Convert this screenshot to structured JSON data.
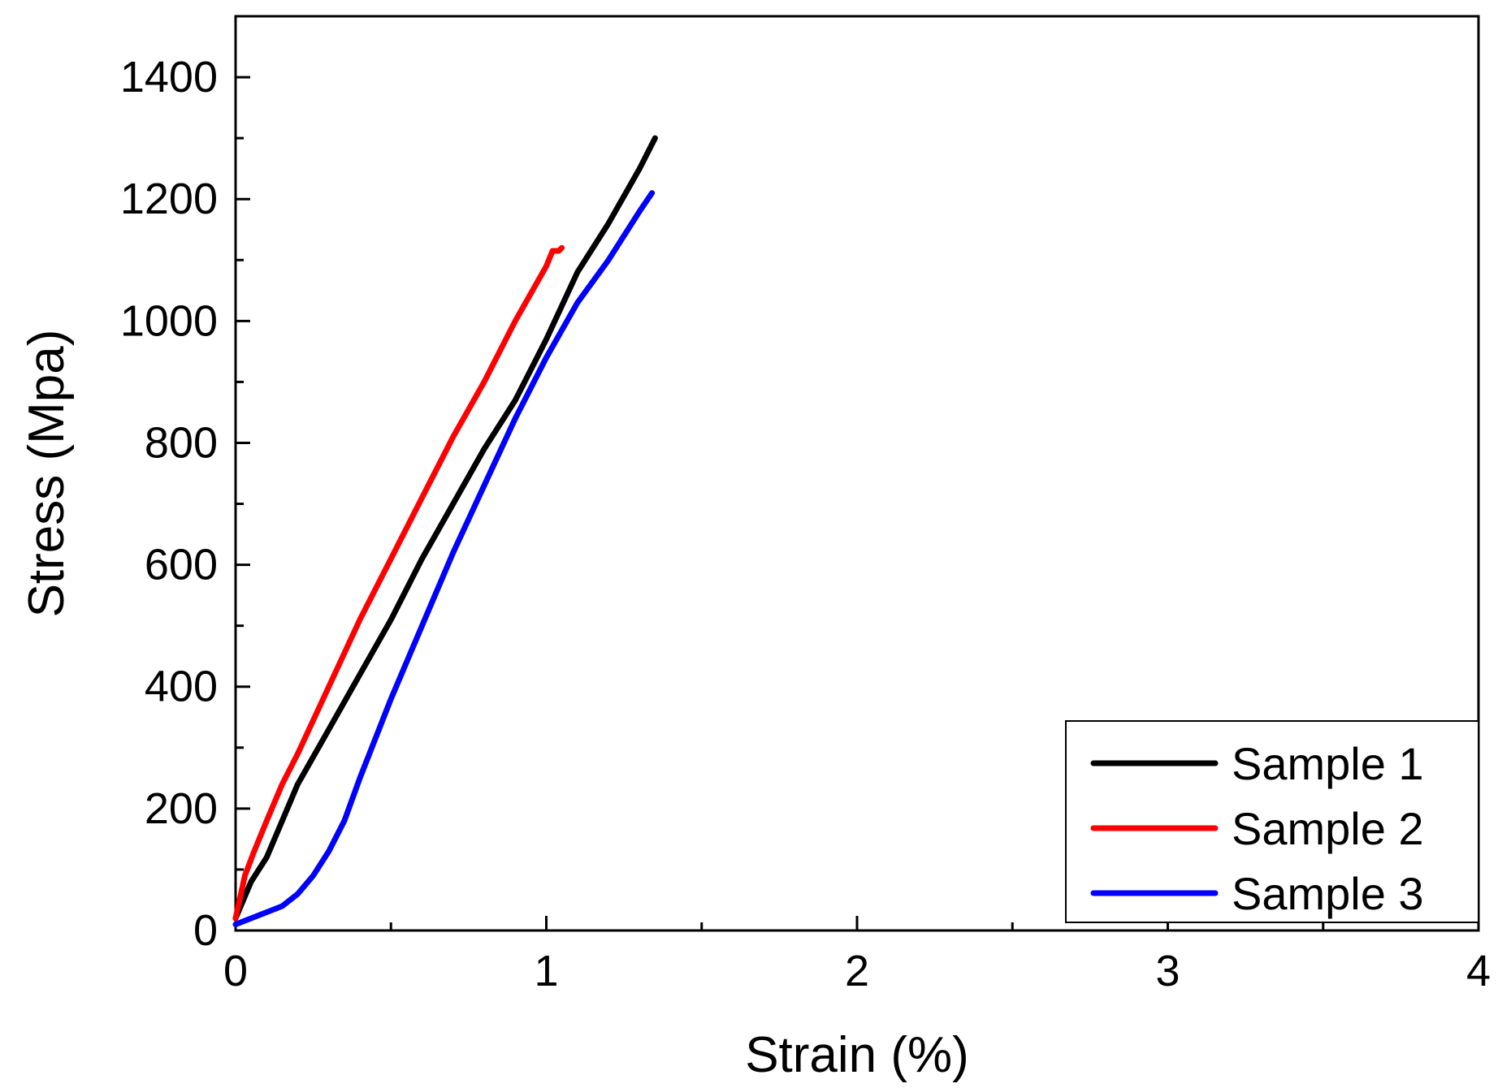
{
  "chart_data": {
    "type": "line",
    "title": "",
    "xlabel": "Strain (%)",
    "ylabel": "Stress (Mpa)",
    "xlim": [
      0,
      4
    ],
    "ylim": [
      0,
      1500
    ],
    "x_ticks": [
      0,
      1,
      2,
      3,
      4
    ],
    "x_tick_labels": [
      "0",
      "1",
      "2",
      "3",
      "4"
    ],
    "y_ticks": [
      0,
      200,
      400,
      600,
      800,
      1000,
      1200,
      1400
    ],
    "y_tick_labels": [
      "0",
      "200",
      "400",
      "600",
      "800",
      "1000",
      "1200",
      "1400"
    ],
    "grid": false,
    "legend_position": "bottom-right",
    "series": [
      {
        "name": "Sample 1",
        "color": "#000000",
        "x": [
          0.0,
          0.05,
          0.1,
          0.15,
          0.2,
          0.3,
          0.4,
          0.5,
          0.6,
          0.7,
          0.8,
          0.9,
          1.0,
          1.1,
          1.2,
          1.3,
          1.35
        ],
        "y": [
          20,
          80,
          120,
          180,
          240,
          330,
          420,
          510,
          610,
          700,
          790,
          870,
          970,
          1080,
          1160,
          1250,
          1300
        ]
      },
      {
        "name": "Sample 2",
        "color": "#ff0000",
        "x": [
          0.0,
          0.03,
          0.06,
          0.1,
          0.15,
          0.2,
          0.3,
          0.4,
          0.5,
          0.6,
          0.7,
          0.8,
          0.9,
          1.0,
          1.02,
          1.04,
          1.05
        ],
        "y": [
          20,
          90,
          130,
          180,
          240,
          290,
          400,
          510,
          610,
          710,
          810,
          900,
          1000,
          1090,
          1115,
          1115,
          1120
        ]
      },
      {
        "name": "Sample 3",
        "color": "#0000ff",
        "x": [
          0.0,
          0.05,
          0.1,
          0.15,
          0.2,
          0.25,
          0.3,
          0.35,
          0.4,
          0.5,
          0.6,
          0.7,
          0.8,
          0.9,
          1.0,
          1.1,
          1.2,
          1.3,
          1.34
        ],
        "y": [
          10,
          20,
          30,
          40,
          60,
          90,
          130,
          180,
          250,
          380,
          500,
          620,
          730,
          840,
          940,
          1030,
          1100,
          1180,
          1210
        ]
      }
    ]
  }
}
